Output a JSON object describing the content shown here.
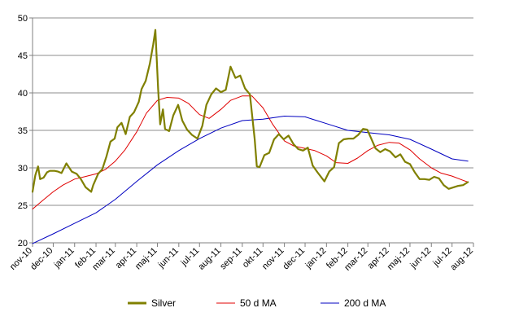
{
  "chart_data": {
    "type": "line",
    "title": "",
    "xlabel": "",
    "ylabel": "",
    "ylim": [
      20,
      50
    ],
    "yticks": [
      20,
      25,
      30,
      35,
      40,
      45,
      50
    ],
    "xlim": [
      "2010-11-01",
      "2012-08-01"
    ],
    "xtick_labels": [
      "nov-10",
      "dec-10",
      "jan-11",
      "feb-11",
      "mar-11",
      "apr-11",
      "maj-11",
      "jun-11",
      "jul-11",
      "aug-11",
      "sep-11",
      "okt-11",
      "nov-11",
      "dec-11",
      "jan-12",
      "feb-12",
      "mar-12",
      "apr-12",
      "maj-12",
      "jun-12",
      "jul-12",
      "aug-12"
    ],
    "grid": "horizontal",
    "legend": "bottom",
    "colors": {
      "Silver": "#808000",
      "50 d MA": "#e00000",
      "200 d MA": "#0000c0"
    },
    "series": [
      {
        "name": "Silver",
        "x": [
          "2010-11-01",
          "2010-11-05",
          "2010-11-09",
          "2010-11-12",
          "2010-11-17",
          "2010-11-22",
          "2010-11-26",
          "2010-12-03",
          "2010-12-08",
          "2010-12-13",
          "2010-12-20",
          "2010-12-28",
          "2011-01-04",
          "2011-01-10",
          "2011-01-17",
          "2011-01-25",
          "2011-01-28",
          "2011-02-04",
          "2011-02-10",
          "2011-02-16",
          "2011-02-22",
          "2011-02-28",
          "2011-03-04",
          "2011-03-10",
          "2011-03-16",
          "2011-03-22",
          "2011-03-28",
          "2011-04-04",
          "2011-04-08",
          "2011-04-14",
          "2011-04-20",
          "2011-04-25",
          "2011-04-28",
          "2011-05-02",
          "2011-05-05",
          "2011-05-09",
          "2011-05-12",
          "2011-05-18",
          "2011-05-24",
          "2011-05-31",
          "2011-06-06",
          "2011-06-13",
          "2011-06-20",
          "2011-06-28",
          "2011-07-05",
          "2011-07-11",
          "2011-07-18",
          "2011-07-25",
          "2011-08-01",
          "2011-08-08",
          "2011-08-15",
          "2011-08-22",
          "2011-08-29",
          "2011-09-05",
          "2011-09-12",
          "2011-09-19",
          "2011-09-22",
          "2011-09-26",
          "2011-10-03",
          "2011-10-10",
          "2011-10-17",
          "2011-10-24",
          "2011-10-31",
          "2011-11-07",
          "2011-11-14",
          "2011-11-21",
          "2011-11-28",
          "2011-12-05",
          "2011-12-12",
          "2011-12-19",
          "2011-12-29",
          "2012-01-05",
          "2012-01-12",
          "2012-01-19",
          "2012-01-26",
          "2012-02-02",
          "2012-02-09",
          "2012-02-16",
          "2012-02-23",
          "2012-02-29",
          "2012-03-05",
          "2012-03-12",
          "2012-03-19",
          "2012-03-26",
          "2012-04-02",
          "2012-04-10",
          "2012-04-17",
          "2012-04-24",
          "2012-05-01",
          "2012-05-08",
          "2012-05-15",
          "2012-05-22",
          "2012-05-29",
          "2012-06-05",
          "2012-06-12",
          "2012-06-19",
          "2012-06-26",
          "2012-07-03",
          "2012-07-10",
          "2012-07-17",
          "2012-07-24"
        ],
        "values": [
          26.8,
          29.0,
          30.2,
          28.5,
          28.7,
          29.4,
          29.6,
          29.6,
          29.5,
          29.3,
          30.6,
          29.5,
          29.2,
          28.5,
          27.4,
          26.8,
          27.7,
          29.2,
          29.8,
          31.5,
          33.5,
          33.9,
          35.4,
          36.0,
          34.5,
          36.8,
          37.4,
          38.8,
          40.5,
          41.6,
          43.9,
          46.5,
          48.4,
          40.5,
          35.8,
          37.8,
          35.2,
          34.9,
          37.0,
          38.4,
          36.3,
          35.1,
          34.4,
          33.9,
          35.6,
          38.4,
          39.8,
          40.6,
          40.1,
          40.4,
          43.5,
          42.0,
          42.3,
          40.6,
          39.8,
          33.8,
          30.2,
          30.1,
          31.7,
          32.0,
          33.8,
          34.5,
          33.8,
          34.3,
          33.2,
          32.5,
          32.3,
          32.7,
          30.3,
          29.4,
          28.2,
          29.5,
          30.1,
          33.3,
          33.8,
          33.9,
          33.9,
          34.4,
          35.2,
          35.1,
          34.1,
          32.6,
          32.1,
          32.5,
          32.2,
          31.4,
          31.8,
          30.8,
          30.5,
          29.4,
          28.5,
          28.5,
          28.4,
          28.8,
          28.6,
          27.7,
          27.2,
          27.4,
          27.6,
          27.7,
          28.1
        ]
      },
      {
        "name": "50 d MA",
        "x": [
          "2010-11-01",
          "2010-11-15",
          "2010-12-01",
          "2010-12-15",
          "2011-01-01",
          "2011-01-15",
          "2011-02-01",
          "2011-02-15",
          "2011-03-01",
          "2011-03-15",
          "2011-04-01",
          "2011-04-15",
          "2011-05-01",
          "2011-05-15",
          "2011-06-01",
          "2011-06-15",
          "2011-07-01",
          "2011-07-15",
          "2011-08-01",
          "2011-08-15",
          "2011-09-01",
          "2011-09-15",
          "2011-10-01",
          "2011-10-15",
          "2011-11-01",
          "2011-11-15",
          "2011-12-01",
          "2011-12-15",
          "2012-01-01",
          "2012-01-15",
          "2012-02-01",
          "2012-02-15",
          "2012-03-01",
          "2012-03-15",
          "2012-04-01",
          "2012-04-15",
          "2012-05-01",
          "2012-05-15",
          "2012-06-01",
          "2012-06-15",
          "2012-07-01",
          "2012-07-15",
          "2012-07-24"
        ],
        "values": [
          24.5,
          25.6,
          26.8,
          27.7,
          28.5,
          28.8,
          29.2,
          29.8,
          30.9,
          32.4,
          34.8,
          37.3,
          39.0,
          39.4,
          39.3,
          38.6,
          37.1,
          36.6,
          37.8,
          39.0,
          39.6,
          39.6,
          38.0,
          35.8,
          33.6,
          32.9,
          32.6,
          32.3,
          31.6,
          30.7,
          30.6,
          31.3,
          32.3,
          33.0,
          33.4,
          33.3,
          32.4,
          31.2,
          30.0,
          29.3,
          28.9,
          28.4,
          28.1
        ]
      },
      {
        "name": "200 d MA",
        "x": [
          "2010-11-01",
          "2010-12-01",
          "2011-01-01",
          "2011-02-01",
          "2011-03-01",
          "2011-04-01",
          "2011-05-01",
          "2011-06-01",
          "2011-07-01",
          "2011-08-01",
          "2011-09-01",
          "2011-10-01",
          "2011-11-01",
          "2011-12-01",
          "2012-01-01",
          "2012-02-01",
          "2012-03-01",
          "2012-04-01",
          "2012-05-01",
          "2012-06-01",
          "2012-07-01",
          "2012-07-24"
        ],
        "values": [
          19.9,
          21.2,
          22.6,
          24.0,
          25.8,
          28.2,
          30.4,
          32.3,
          33.9,
          35.3,
          36.3,
          36.5,
          36.9,
          36.8,
          35.9,
          35.0,
          34.7,
          34.4,
          33.8,
          32.5,
          31.2,
          30.9
        ]
      }
    ]
  },
  "legend": {
    "items": [
      {
        "label": "Silver"
      },
      {
        "label": "50 d MA"
      },
      {
        "label": "200 d MA"
      }
    ]
  }
}
